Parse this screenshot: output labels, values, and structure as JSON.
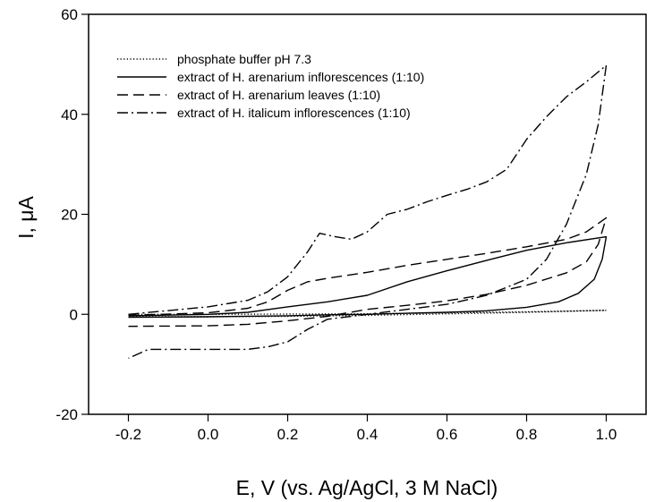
{
  "chart_data": {
    "type": "line",
    "title": "",
    "xlabel": "E, V (vs. Ag/AgCl, 3 M NaCl)",
    "ylabel": "I, μA",
    "xlim": [
      -0.3,
      1.1
    ],
    "ylim": [
      -20,
      60
    ],
    "xticks": [
      "-0.2",
      "0.0",
      "0.2",
      "0.4",
      "0.6",
      "0.8",
      "1.0"
    ],
    "yticks": [
      "-20",
      "0",
      "20",
      "40",
      "60"
    ],
    "grid": false,
    "legend_position": "top-left",
    "series": [
      {
        "name": "phosphate buffer pH 7.3",
        "dash": "dotted",
        "forward": [
          [
            -0.2,
            0.0
          ],
          [
            0.0,
            0.0
          ],
          [
            0.2,
            0.05
          ],
          [
            0.4,
            0.1
          ],
          [
            0.6,
            0.3
          ],
          [
            0.8,
            0.5
          ],
          [
            1.0,
            0.8
          ]
        ],
        "reverse": [
          [
            1.0,
            0.8
          ],
          [
            0.8,
            0.4
          ],
          [
            0.6,
            0.1
          ],
          [
            0.4,
            -0.2
          ],
          [
            0.2,
            -0.4
          ],
          [
            0.0,
            -0.5
          ],
          [
            -0.2,
            -0.5
          ]
        ]
      },
      {
        "name": "extract of H. arenarium inflorescences (1:10)",
        "dash": "solid",
        "forward": [
          [
            -0.2,
            -0.3
          ],
          [
            0.0,
            0.0
          ],
          [
            0.1,
            0.4
          ],
          [
            0.2,
            1.5
          ],
          [
            0.3,
            2.5
          ],
          [
            0.4,
            3.8
          ],
          [
            0.5,
            6.5
          ],
          [
            0.6,
            8.7
          ],
          [
            0.7,
            10.8
          ],
          [
            0.8,
            12.8
          ],
          [
            0.9,
            14.3
          ],
          [
            1.0,
            15.5
          ]
        ],
        "reverse": [
          [
            1.0,
            15.5
          ],
          [
            0.99,
            11.0
          ],
          [
            0.97,
            7.0
          ],
          [
            0.93,
            4.2
          ],
          [
            0.88,
            2.5
          ],
          [
            0.8,
            1.4
          ],
          [
            0.7,
            0.7
          ],
          [
            0.6,
            0.4
          ],
          [
            0.5,
            0.2
          ],
          [
            0.4,
            0.0
          ],
          [
            0.3,
            -0.1
          ],
          [
            0.2,
            -0.3
          ],
          [
            0.0,
            -0.5
          ],
          [
            -0.2,
            -0.6
          ]
        ]
      },
      {
        "name": "extract of H. arenarium leaves (1:10)",
        "dash": "dashed",
        "forward": [
          [
            -0.2,
            -0.2
          ],
          [
            0.0,
            0.3
          ],
          [
            0.1,
            1.2
          ],
          [
            0.15,
            2.5
          ],
          [
            0.2,
            4.8
          ],
          [
            0.25,
            6.5
          ],
          [
            0.3,
            7.2
          ],
          [
            0.4,
            8.4
          ],
          [
            0.5,
            9.8
          ],
          [
            0.6,
            11.0
          ],
          [
            0.7,
            12.2
          ],
          [
            0.8,
            13.5
          ],
          [
            0.9,
            15.0
          ],
          [
            0.95,
            16.5
          ],
          [
            1.0,
            19.3
          ]
        ],
        "reverse": [
          [
            1.0,
            19.3
          ],
          [
            0.98,
            14.0
          ],
          [
            0.95,
            10.5
          ],
          [
            0.9,
            8.3
          ],
          [
            0.8,
            5.8
          ],
          [
            0.7,
            4.0
          ],
          [
            0.6,
            2.7
          ],
          [
            0.5,
            1.8
          ],
          [
            0.4,
            1.0
          ],
          [
            0.35,
            0.3
          ],
          [
            0.3,
            -0.4
          ],
          [
            0.2,
            -1.3
          ],
          [
            0.1,
            -2.0
          ],
          [
            0.0,
            -2.3
          ],
          [
            -0.2,
            -2.4
          ]
        ]
      },
      {
        "name": "extract of H. italicum  inflorescences (1:10)",
        "dash": "dashdot",
        "forward": [
          [
            -0.2,
            0.0
          ],
          [
            0.0,
            1.5
          ],
          [
            0.1,
            2.8
          ],
          [
            0.15,
            4.5
          ],
          [
            0.2,
            7.5
          ],
          [
            0.25,
            12.5
          ],
          [
            0.28,
            16.2
          ],
          [
            0.32,
            15.5
          ],
          [
            0.36,
            15.0
          ],
          [
            0.4,
            16.5
          ],
          [
            0.45,
            20.0
          ],
          [
            0.5,
            21.0
          ],
          [
            0.55,
            22.5
          ],
          [
            0.6,
            23.8
          ],
          [
            0.65,
            25.0
          ],
          [
            0.7,
            26.5
          ],
          [
            0.75,
            29.0
          ],
          [
            0.8,
            35.0
          ],
          [
            0.85,
            39.5
          ],
          [
            0.9,
            43.5
          ],
          [
            0.95,
            46.5
          ],
          [
            1.0,
            49.8
          ]
        ],
        "reverse": [
          [
            1.0,
            49.8
          ],
          [
            0.98,
            38.0
          ],
          [
            0.95,
            28.0
          ],
          [
            0.9,
            18.0
          ],
          [
            0.85,
            11.0
          ],
          [
            0.8,
            7.0
          ],
          [
            0.7,
            3.8
          ],
          [
            0.6,
            2.0
          ],
          [
            0.5,
            1.0
          ],
          [
            0.4,
            0.0
          ],
          [
            0.3,
            -1.0
          ],
          [
            0.25,
            -3.0
          ],
          [
            0.2,
            -5.5
          ],
          [
            0.15,
            -6.5
          ],
          [
            0.1,
            -7.0
          ],
          [
            0.0,
            -7.0
          ],
          [
            -0.15,
            -7.0
          ],
          [
            -0.2,
            -8.8
          ]
        ]
      }
    ]
  }
}
